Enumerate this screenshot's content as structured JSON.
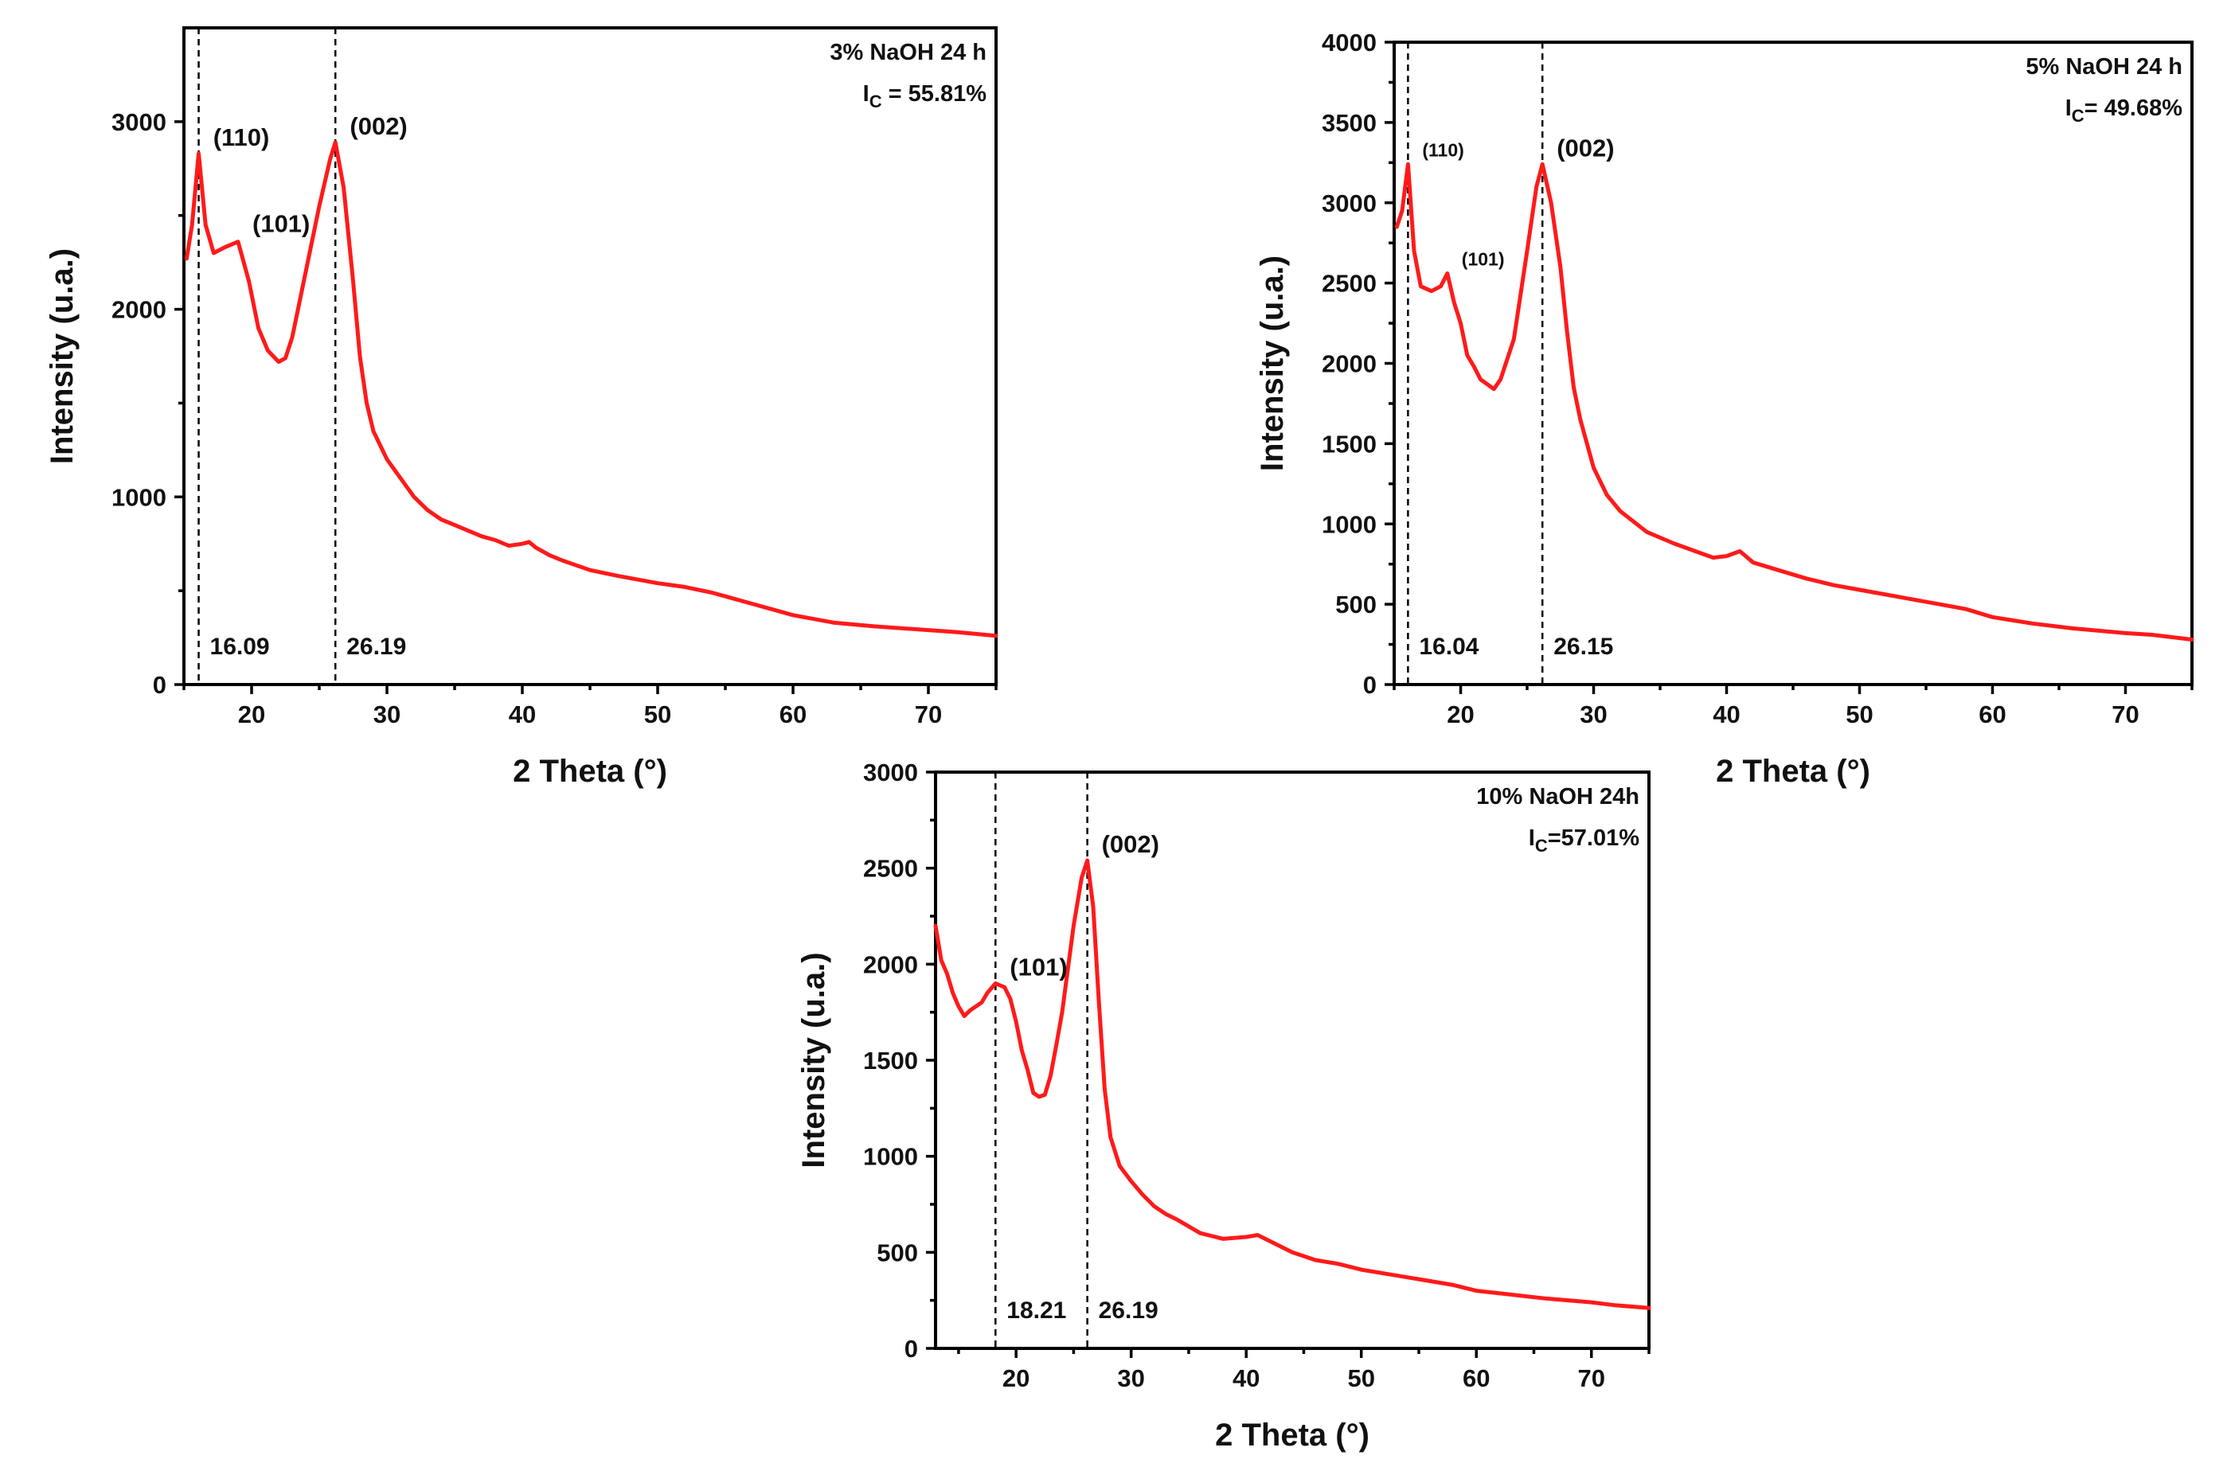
{
  "chart_data": [
    {
      "type": "line",
      "id": "naoh-3",
      "title": "3% NaOH 24 h",
      "crystallinity_label": "I",
      "crystallinity_sub": "C",
      "crystallinity_value": " = 55.81%",
      "xlabel": "2 Theta (°)",
      "ylabel": "Intensity (u.a.)",
      "xlim": [
        15,
        75
      ],
      "ylim": [
        0,
        3500
      ],
      "xticks": [
        20,
        30,
        40,
        50,
        60,
        70
      ],
      "yticks": [
        0,
        1000,
        2000,
        3000
      ],
      "color": "#ff1a1a",
      "reference_lines": [
        {
          "x": 16.09,
          "label": "16.09"
        },
        {
          "x": 26.19,
          "label": "26.19"
        }
      ],
      "peak_labels": [
        {
          "text": "(110)",
          "x": 16.1,
          "y": 2830
        },
        {
          "text": "(101)",
          "x": 19.0,
          "y": 2370
        },
        {
          "text": "(002)",
          "x": 26.2,
          "y": 2890
        }
      ],
      "series": [
        {
          "name": "3% NaOH 24 h",
          "x": [
            15.2,
            15.6,
            16.09,
            16.6,
            17.2,
            18.0,
            19.0,
            19.8,
            20.5,
            21.2,
            22.0,
            22.5,
            23.0,
            24.0,
            25.0,
            25.8,
            26.19,
            26.8,
            27.5,
            28.0,
            28.5,
            29.0,
            30.0,
            31.0,
            32.0,
            33.0,
            34.0,
            35.0,
            36.0,
            37.0,
            38.0,
            39.0,
            40.0,
            40.5,
            41.0,
            42.0,
            43.0,
            45.0,
            47.0,
            50.0,
            52.0,
            54.0,
            55.0,
            57.0,
            60.0,
            63.0,
            66.0,
            70.0,
            72.0,
            75.0
          ],
          "y": [
            2270,
            2450,
            2830,
            2450,
            2300,
            2330,
            2360,
            2150,
            1900,
            1780,
            1720,
            1740,
            1850,
            2200,
            2550,
            2800,
            2890,
            2650,
            2150,
            1750,
            1500,
            1350,
            1200,
            1100,
            1000,
            930,
            880,
            850,
            820,
            790,
            770,
            740,
            750,
            760,
            730,
            690,
            660,
            610,
            580,
            540,
            520,
            490,
            470,
            430,
            370,
            330,
            310,
            290,
            280,
            260
          ]
        }
      ]
    },
    {
      "type": "line",
      "id": "naoh-5",
      "title": "5% NaOH 24 h",
      "crystallinity_label": "I",
      "crystallinity_sub": "C",
      "crystallinity_value": "= 49.68%",
      "xlabel": "2 Theta (°)",
      "ylabel": "Intensity (u.a.)",
      "xlim": [
        15,
        75
      ],
      "ylim": [
        0,
        4000
      ],
      "xticks": [
        20,
        30,
        40,
        50,
        60,
        70
      ],
      "yticks": [
        0,
        500,
        1000,
        1500,
        2000,
        2500,
        3000,
        3500,
        4000
      ],
      "color": "#ff1a1a",
      "reference_lines": [
        {
          "x": 16.04,
          "label": "16.04"
        },
        {
          "x": 26.15,
          "label": "26.15"
        }
      ],
      "peak_labels": [
        {
          "text": "(110)",
          "x": 16.04,
          "y": 3240,
          "small": true
        },
        {
          "text": "(101)",
          "x": 19.0,
          "y": 2560,
          "small": true
        },
        {
          "text": "(002)",
          "x": 26.15,
          "y": 3240
        }
      ],
      "series": [
        {
          "name": "5% NaOH 24 h",
          "x": [
            15.2,
            15.6,
            16.04,
            16.5,
            17.0,
            17.8,
            18.5,
            19.0,
            19.5,
            20.0,
            20.5,
            21.0,
            21.5,
            22.0,
            22.5,
            23.0,
            24.0,
            25.0,
            25.7,
            26.15,
            26.8,
            27.5,
            28.0,
            28.5,
            29.0,
            30.0,
            31.0,
            32.0,
            34.0,
            36.0,
            38.0,
            39.0,
            40.0,
            41.0,
            42.0,
            44.0,
            46.0,
            48.0,
            50.0,
            52.0,
            54.0,
            56.0,
            58.0,
            60.0,
            63.0,
            66.0,
            70.0,
            72.0,
            75.0
          ],
          "y": [
            2850,
            2950,
            3240,
            2700,
            2480,
            2450,
            2480,
            2560,
            2380,
            2250,
            2050,
            1980,
            1900,
            1870,
            1840,
            1900,
            2150,
            2700,
            3100,
            3240,
            3000,
            2600,
            2200,
            1850,
            1650,
            1350,
            1180,
            1080,
            950,
            880,
            820,
            790,
            800,
            830,
            760,
            710,
            660,
            620,
            590,
            560,
            530,
            500,
            470,
            420,
            380,
            350,
            320,
            310,
            280
          ]
        }
      ]
    },
    {
      "type": "line",
      "id": "naoh-10",
      "title": "10% NaOH 24h",
      "crystallinity_label": "I",
      "crystallinity_sub": "C",
      "crystallinity_value": "=57.01%",
      "xlabel": "2 Theta (°)",
      "ylabel": "Intensity (u.a.)",
      "xlim": [
        13,
        75
      ],
      "ylim": [
        0,
        3000
      ],
      "xticks": [
        20,
        30,
        40,
        50,
        60,
        70
      ],
      "yticks": [
        0,
        500,
        1000,
        1500,
        2000,
        2500,
        3000
      ],
      "color": "#ff1a1a",
      "reference_lines": [
        {
          "x": 18.21,
          "label": "18.21"
        },
        {
          "x": 26.19,
          "label": "26.19"
        }
      ],
      "peak_labels": [
        {
          "text": "(101)",
          "x": 18.21,
          "y": 1900
        },
        {
          "text": "(002)",
          "x": 26.19,
          "y": 2540
        }
      ],
      "series": [
        {
          "name": "10% NaOH 24h",
          "x": [
            13.0,
            13.5,
            14.0,
            14.5,
            15.0,
            15.5,
            16.0,
            16.5,
            17.0,
            17.5,
            18.21,
            19.0,
            19.5,
            20.0,
            20.5,
            21.0,
            21.5,
            22.0,
            22.5,
            23.0,
            23.5,
            24.0,
            25.0,
            25.7,
            26.19,
            26.7,
            27.2,
            27.7,
            28.2,
            29.0,
            30.0,
            31.0,
            32.0,
            33.0,
            34.0,
            36.0,
            38.0,
            40.0,
            41.0,
            42.0,
            44.0,
            46.0,
            48.0,
            50.0,
            53.0,
            56.0,
            58.0,
            60.0,
            63.0,
            66.0,
            70.0,
            72.0,
            75.0
          ],
          "y": [
            2200,
            2020,
            1950,
            1850,
            1780,
            1730,
            1760,
            1780,
            1800,
            1850,
            1900,
            1880,
            1820,
            1700,
            1550,
            1450,
            1330,
            1310,
            1320,
            1420,
            1580,
            1750,
            2200,
            2450,
            2540,
            2300,
            1800,
            1350,
            1100,
            950,
            870,
            800,
            740,
            700,
            670,
            600,
            570,
            580,
            590,
            560,
            500,
            460,
            440,
            410,
            380,
            350,
            330,
            300,
            280,
            260,
            240,
            225,
            210
          ]
        }
      ]
    }
  ]
}
